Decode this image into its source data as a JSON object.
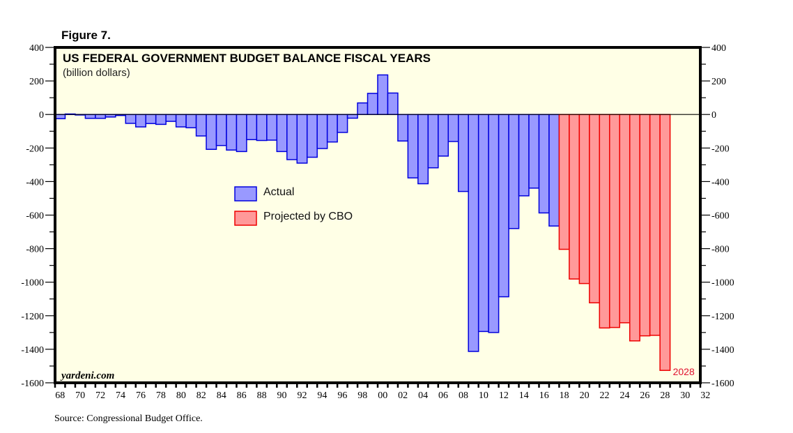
{
  "figure_label": "Figure 7.",
  "source": "Source: Congressional Budget Office.",
  "watermark": "yardeni.com",
  "colors": {
    "plot_background": "#ffffe6",
    "actual_fill": "#9999ff",
    "actual_stroke": "#0000dd",
    "projected_fill": "#ff9999",
    "projected_stroke": "#ee0000",
    "annotation": "#e0102e"
  },
  "chart_data": {
    "type": "bar",
    "title": "US FEDERAL GOVERNMENT BUDGET BALANCE FISCAL YEARS",
    "subtitle": "(billion dollars)",
    "xlabel": "",
    "ylabel": "",
    "xlim": [
      1968,
      2032
    ],
    "ylim": [
      -1600,
      400
    ],
    "y_ticks": [
      400,
      200,
      0,
      -200,
      -400,
      -600,
      -800,
      -1000,
      -1200,
      -1400,
      -1600
    ],
    "y_tick_labels": [
      "400",
      "200",
      "0",
      "-200",
      "-400",
      "-600",
      "-800",
      "-1000",
      "-1200",
      "-1400",
      "-1600"
    ],
    "x_tick_labels": [
      "68",
      "70",
      "72",
      "74",
      "76",
      "78",
      "80",
      "82",
      "84",
      "86",
      "88",
      "90",
      "92",
      "94",
      "96",
      "98",
      "00",
      "02",
      "04",
      "06",
      "08",
      "10",
      "12",
      "14",
      "16",
      "18",
      "20",
      "22",
      "24",
      "26",
      "28",
      "30",
      "32"
    ],
    "legend": {
      "position": "center-left",
      "entries": [
        "Actual",
        "Projected by CBO"
      ]
    },
    "annotation": {
      "text": "2028",
      "year": 2028
    },
    "grid": false,
    "series": [
      {
        "name": "Actual",
        "years": [
          1968,
          1969,
          1970,
          1971,
          1972,
          1973,
          1974,
          1975,
          1976,
          1977,
          1978,
          1979,
          1980,
          1981,
          1982,
          1983,
          1984,
          1985,
          1986,
          1987,
          1988,
          1989,
          1990,
          1991,
          1992,
          1993,
          1994,
          1995,
          1996,
          1997,
          1998,
          1999,
          2000,
          2001,
          2002,
          2003,
          2004,
          2005,
          2006,
          2007,
          2008,
          2009,
          2010,
          2011,
          2012,
          2013,
          2014,
          2015,
          2016,
          2017
        ],
        "values": [
          -25,
          3,
          -3,
          -23,
          -23,
          -15,
          -6,
          -53,
          -74,
          -54,
          -59,
          -41,
          -74,
          -79,
          -128,
          -208,
          -185,
          -212,
          -221,
          -150,
          -155,
          -153,
          -221,
          -269,
          -290,
          -255,
          -203,
          -164,
          -107,
          -22,
          69,
          126,
          236,
          128,
          -158,
          -378,
          -413,
          -318,
          -248,
          -161,
          -459,
          -1413,
          -1294,
          -1300,
          -1087,
          -680,
          -485,
          -439,
          -587,
          -665
        ]
      },
      {
        "name": "Projected by CBO",
        "years": [
          2018,
          2019,
          2020,
          2021,
          2022,
          2023,
          2024,
          2025,
          2026,
          2027,
          2028
        ],
        "values": [
          -804,
          -981,
          -1008,
          -1123,
          -1273,
          -1270,
          -1242,
          -1350,
          -1320,
          -1317,
          -1526
        ]
      }
    ]
  }
}
